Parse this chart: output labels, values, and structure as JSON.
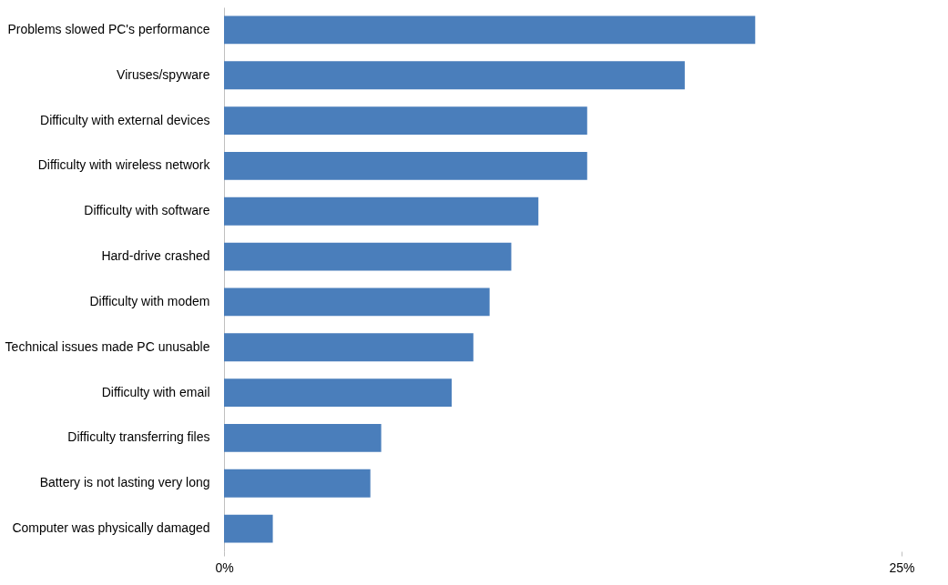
{
  "chart_data": {
    "type": "bar",
    "orientation": "horizontal",
    "categories": [
      "Problems slowed PC's performance",
      "Viruses/spyware",
      "Difficulty with external devices",
      "Difficulty with wireless network",
      "Difficulty with software",
      "Hard-drive crashed",
      "Difficulty with modem",
      "Technical issues made PC unusable",
      "Difficulty with email",
      "Difficulty transferring files",
      "Battery is not lasting very long",
      "Computer was physically damaged"
    ],
    "values": [
      19.6,
      17.0,
      13.4,
      13.4,
      11.6,
      10.6,
      9.8,
      9.2,
      8.4,
      5.8,
      5.4,
      1.8
    ],
    "color": "#4a7ebb",
    "xlim": [
      0,
      25
    ],
    "xticks": [
      {
        "value": 0,
        "label": "0%"
      },
      {
        "value": 25,
        "label": "25%"
      }
    ],
    "grid": false
  }
}
